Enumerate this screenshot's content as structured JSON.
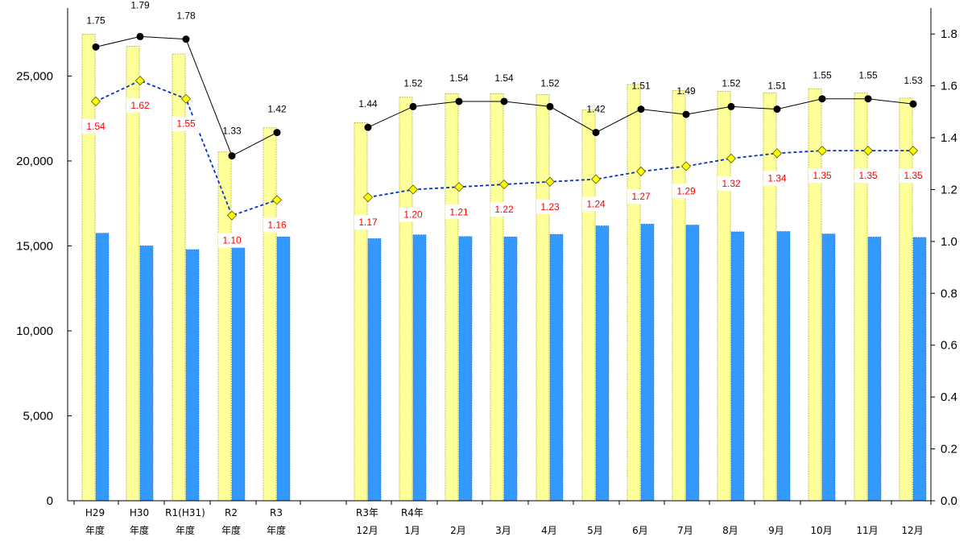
{
  "chart_data": {
    "type": "bar",
    "title": "",
    "xlabel": "",
    "ylabel": "",
    "ylabel_right": "",
    "categories": [
      [
        "H29",
        "年度"
      ],
      [
        "H30",
        "年度"
      ],
      [
        "R1(H31)",
        "年度"
      ],
      [
        "R2",
        "年度"
      ],
      [
        "R3",
        "年度"
      ],
      [
        "R3年",
        "12月"
      ],
      [
        "R4年",
        "1月"
      ],
      [
        "",
        "2月"
      ],
      [
        "",
        "3月"
      ],
      [
        "",
        "4月"
      ],
      [
        "",
        "5月"
      ],
      [
        "",
        "6月"
      ],
      [
        "",
        "7月"
      ],
      [
        "",
        "8月"
      ],
      [
        "",
        "9月"
      ],
      [
        "",
        "10月"
      ],
      [
        "",
        "11月"
      ],
      [
        "",
        "12月"
      ]
    ],
    "left_axis": {
      "min": 0,
      "max": 29000,
      "ticks": [
        0,
        5000,
        10000,
        15000,
        20000,
        25000
      ],
      "tick_labels": [
        "0",
        "5,000",
        "10,000",
        "15,000",
        "20,000",
        "25,000"
      ]
    },
    "right_axis": {
      "min": 0,
      "max": 1.9,
      "ticks": [
        0,
        0.2,
        0.4,
        0.6,
        0.8,
        1.0,
        1.2,
        1.4,
        1.6,
        1.8
      ],
      "tick_labels": [
        "0.0",
        "0.2",
        "0.4",
        "0.6",
        "0.8",
        "1.0",
        "1.2",
        "1.4",
        "1.6",
        "1.8"
      ]
    },
    "series": [
      {
        "type": "bar",
        "axis": "left",
        "color": "#ffff99",
        "values": [
          27450,
          26750,
          26300,
          20530,
          21950,
          22250,
          23750,
          23950,
          23950,
          23900,
          23000,
          24500,
          24150,
          24100,
          24000,
          24250,
          24000,
          23700
        ]
      },
      {
        "type": "bar",
        "axis": "left",
        "color": "#3399ff",
        "values": [
          15750,
          15000,
          14780,
          15400,
          15530,
          15430,
          15650,
          15550,
          15530,
          15680,
          16180,
          16280,
          16230,
          15830,
          15850,
          15700,
          15520,
          15500
        ]
      },
      {
        "type": "line",
        "axis": "right",
        "color": "#000000",
        "marker": "circle",
        "values": [
          1.75,
          1.79,
          1.78,
          1.33,
          1.42,
          1.44,
          1.52,
          1.54,
          1.54,
          1.52,
          1.42,
          1.51,
          1.49,
          1.52,
          1.51,
          1.55,
          1.55,
          1.53
        ]
      },
      {
        "type": "line",
        "axis": "right",
        "color": "#0033cc",
        "marker": "diamond",
        "dashed": true,
        "values": [
          1.54,
          1.62,
          1.55,
          1.1,
          1.16,
          1.17,
          1.2,
          1.21,
          1.22,
          1.23,
          1.24,
          1.27,
          1.29,
          1.32,
          1.34,
          1.35,
          1.35,
          1.35
        ]
      }
    ],
    "labels_black": [
      "1.75",
      "1.79",
      "1.78",
      "1.33",
      "1.42",
      "1.44",
      "1.52",
      "1.54",
      "1.54",
      "1.52",
      "1.42",
      "1.51",
      "1.49",
      "1.52",
      "1.51",
      "1.55",
      "1.55",
      "1.53"
    ],
    "labels_red": [
      "1.54",
      "1.62",
      "1.55",
      "1.10",
      "1.16",
      "1.17",
      "1.20",
      "1.21",
      "1.22",
      "1.23",
      "1.24",
      "1.27",
      "1.29",
      "1.32",
      "1.34",
      "1.35",
      "1.35",
      "1.35"
    ],
    "legend": "none",
    "grid": false
  }
}
